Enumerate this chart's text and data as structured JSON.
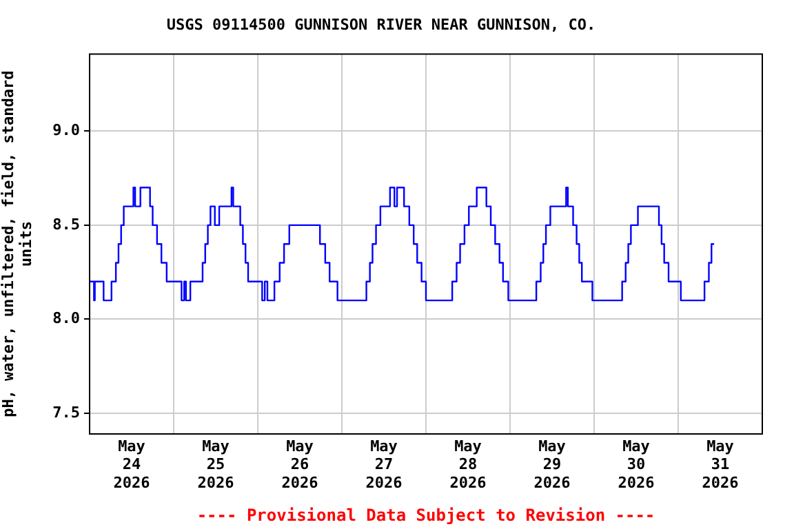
{
  "chart_data": {
    "type": "step",
    "title": "USGS 09114500 GUNNISON RIVER NEAR GUNNISON, CO.",
    "ylabel": "pH, water, unfiltered, field, standard units",
    "annotations": [
      "---- Provisional Data Subject to Revision ----"
    ],
    "xlim": [
      "2026-05-24T00:00",
      "2026-06-01T00:00"
    ],
    "xticks": [
      {
        "value": "2026-05-24T00:00",
        "label": null
      },
      {
        "value": "2026-05-24T12:00",
        "label": "May\n24\n2026"
      },
      {
        "value": "2026-05-25T00:00",
        "label": null
      },
      {
        "value": "2026-05-25T12:00",
        "label": "May\n25\n2026"
      },
      {
        "value": "2026-05-26T00:00",
        "label": null
      },
      {
        "value": "2026-05-26T12:00",
        "label": "May\n26\n2026"
      },
      {
        "value": "2026-05-27T00:00",
        "label": null
      },
      {
        "value": "2026-05-27T12:00",
        "label": "May\n27\n2026"
      },
      {
        "value": "2026-05-28T00:00",
        "label": null
      },
      {
        "value": "2026-05-28T12:00",
        "label": "May\n28\n2026"
      },
      {
        "value": "2026-05-29T00:00",
        "label": null
      },
      {
        "value": "2026-05-29T12:00",
        "label": "May\n29\n2026"
      },
      {
        "value": "2026-05-30T00:00",
        "label": null
      },
      {
        "value": "2026-05-30T12:00",
        "label": "May\n30\n2026"
      },
      {
        "value": "2026-05-31T00:00",
        "label": null
      },
      {
        "value": "2026-05-31T12:00",
        "label": "May\n31\n2026"
      },
      {
        "value": "2026-06-01T00:00",
        "label": null
      }
    ],
    "ylim": [
      7.39,
      9.41
    ],
    "yticks": [
      7.5,
      {
        "value": 8,
        "label": "8.0"
      },
      8.5,
      {
        "value": 9,
        "label": "9.0"
      }
    ],
    "grid": true,
    "legend": false,
    "marker": "none",
    "line_style": "solid",
    "series": [
      {
        "color": "#0000ff",
        "x": [
          "2026-05-24T00:00",
          "2026-05-24T01:15",
          "2026-05-24T01:30",
          "2026-05-24T04:00",
          "2026-05-24T06:15",
          "2026-05-24T07:30",
          "2026-05-24T08:15",
          "2026-05-24T09:00",
          "2026-05-24T09:45",
          "2026-05-24T12:30",
          "2026-05-24T13:00",
          "2026-05-24T14:30",
          "2026-05-24T17:15",
          "2026-05-24T18:00",
          "2026-05-24T19:15",
          "2026-05-24T20:30",
          "2026-05-24T22:00",
          "2026-05-25T02:15",
          "2026-05-25T03:00",
          "2026-05-25T03:30",
          "2026-05-25T04:45",
          "2026-05-25T08:15",
          "2026-05-25T09:00",
          "2026-05-25T09:45",
          "2026-05-25T10:30",
          "2026-05-25T11:45",
          "2026-05-25T13:00",
          "2026-05-25T16:30",
          "2026-05-25T17:00",
          "2026-05-25T19:00",
          "2026-05-25T19:45",
          "2026-05-25T20:30",
          "2026-05-25T21:15",
          "2026-05-26T01:15",
          "2026-05-26T02:00",
          "2026-05-26T02:45",
          "2026-05-26T04:45",
          "2026-05-26T06:15",
          "2026-05-26T07:30",
          "2026-05-26T09:00",
          "2026-05-26T17:45",
          "2026-05-26T19:15",
          "2026-05-26T20:30",
          "2026-05-26T22:45",
          "2026-05-27T07:00",
          "2026-05-27T08:00",
          "2026-05-27T08:45",
          "2026-05-27T09:45",
          "2026-05-27T11:00",
          "2026-05-27T13:45",
          "2026-05-27T15:00",
          "2026-05-27T15:45",
          "2026-05-27T17:45",
          "2026-05-27T19:15",
          "2026-05-27T20:30",
          "2026-05-27T21:30",
          "2026-05-27T22:45",
          "2026-05-28T00:00",
          "2026-05-28T07:30",
          "2026-05-28T08:45",
          "2026-05-28T09:45",
          "2026-05-28T11:00",
          "2026-05-28T12:15",
          "2026-05-28T14:30",
          "2026-05-28T17:15",
          "2026-05-28T18:30",
          "2026-05-28T19:45",
          "2026-05-28T21:00",
          "2026-05-28T22:00",
          "2026-05-28T23:30",
          "2026-05-29T07:30",
          "2026-05-29T08:45",
          "2026-05-29T09:30",
          "2026-05-29T10:15",
          "2026-05-29T11:30",
          "2026-05-29T16:00",
          "2026-05-29T16:30",
          "2026-05-29T18:00",
          "2026-05-29T19:00",
          "2026-05-29T19:45",
          "2026-05-29T20:30",
          "2026-05-29T23:30",
          "2026-05-30T08:00",
          "2026-05-30T09:00",
          "2026-05-30T09:45",
          "2026-05-30T10:30",
          "2026-05-30T12:30",
          "2026-05-30T18:30",
          "2026-05-30T19:15",
          "2026-05-30T20:00",
          "2026-05-30T21:15",
          "2026-05-31T00:45",
          "2026-05-31T07:30",
          "2026-05-31T08:45",
          "2026-05-31T09:30",
          "2026-05-31T10:15"
        ],
        "values": [
          8.2,
          8.1,
          8.2,
          8.1,
          8.2,
          8.3,
          8.4,
          8.5,
          8.6,
          8.7,
          8.6,
          8.7,
          8.6,
          8.5,
          8.4,
          8.3,
          8.2,
          8.1,
          8.2,
          8.1,
          8.2,
          8.3,
          8.4,
          8.5,
          8.6,
          8.5,
          8.6,
          8.7,
          8.6,
          8.5,
          8.4,
          8.3,
          8.2,
          8.1,
          8.2,
          8.1,
          8.2,
          8.3,
          8.4,
          8.5,
          8.4,
          8.3,
          8.2,
          8.1,
          8.2,
          8.3,
          8.4,
          8.5,
          8.6,
          8.7,
          8.6,
          8.7,
          8.6,
          8.5,
          8.4,
          8.3,
          8.2,
          8.1,
          8.2,
          8.3,
          8.4,
          8.5,
          8.6,
          8.7,
          8.6,
          8.5,
          8.4,
          8.3,
          8.2,
          8.1,
          8.2,
          8.3,
          8.4,
          8.5,
          8.6,
          8.7,
          8.6,
          8.5,
          8.4,
          8.3,
          8.2,
          8.1,
          8.2,
          8.3,
          8.4,
          8.5,
          8.6,
          8.5,
          8.4,
          8.3,
          8.2,
          8.1,
          8.2,
          8.3,
          8.4,
          8.4
        ]
      }
    ]
  }
}
